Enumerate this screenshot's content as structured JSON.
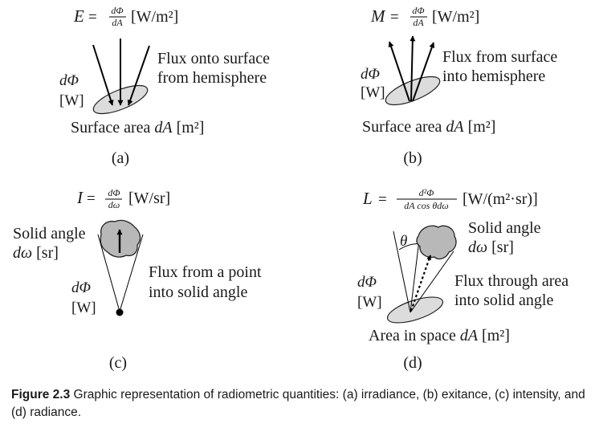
{
  "panels": {
    "a": {
      "label": "(a)",
      "formula_lhs": "E",
      "formula_num": "dΦ",
      "formula_den": "dA",
      "formula_unit": "[W/m²]",
      "flux_symbol": "dΦ",
      "flux_unit": "[W]",
      "text_line1": "Flux onto surface",
      "text_line2": "from hemisphere",
      "surface_text": "Surface area",
      "surface_var": "dA",
      "surface_unit": "[m²]"
    },
    "b": {
      "label": "(b)",
      "formula_lhs": "M",
      "formula_num": "dΦ",
      "formula_den": "dA",
      "formula_unit": "[W/m²]",
      "flux_symbol": "dΦ",
      "flux_unit": "[W]",
      "text_line1": "Flux from surface",
      "text_line2": "into hemisphere",
      "surface_text": "Surface area",
      "surface_var": "dA",
      "surface_unit": "[m²]"
    },
    "c": {
      "label": "(c)",
      "formula_lhs": "I",
      "formula_num": "dΦ",
      "formula_den": "dω",
      "formula_unit": "[W/sr]",
      "solid_line1": "Solid angle",
      "solid_var": "dω",
      "solid_unit": "[sr]",
      "flux_symbol": "dΦ",
      "flux_unit": "[W]",
      "text_line1": "Flux from a point",
      "text_line2": "into solid angle"
    },
    "d": {
      "label": "(d)",
      "formula_lhs": "L",
      "formula_num": "d²Φ",
      "formula_den": "dA cos θdω",
      "formula_unit": "[W/(m²·sr)]",
      "solid_line1": "Solid angle",
      "solid_var": "dω",
      "solid_unit": "[sr]",
      "theta": "θ",
      "flux_symbol": "dΦ",
      "flux_unit": "[W]",
      "text_line1": "Flux through area",
      "text_line2": "into solid angle",
      "area_text": "Area in space",
      "area_var": "dA",
      "area_unit": "[m²]"
    }
  },
  "caption": {
    "label": "Figure 2.3",
    "text": " Graphic representation of radiometric quantities: (a) irradiance, (b) exitance, (c) intensity, and (d) radiance."
  }
}
